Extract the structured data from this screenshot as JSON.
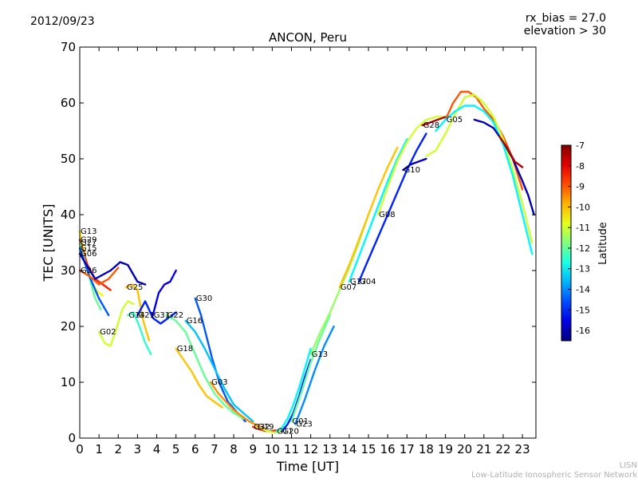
{
  "date_label": "2012/09/23",
  "bias_label": "rx_bias = 27.0",
  "elev_label": "elevation > 30",
  "footer": {
    "line1": "LISN",
    "line2": "Low-Latitude Ionospheric Sensor Network"
  },
  "colorbar": {
    "label": "Latitude",
    "ticks": [
      "-7",
      "-8",
      "-9",
      "-10",
      "-11",
      "-12",
      "-13",
      "-14",
      "-15",
      "-16"
    ],
    "tick_values": [
      -7,
      -8,
      -9,
      -10,
      -11,
      -12,
      -13,
      -14,
      -15,
      -16
    ],
    "range": [
      -16.5,
      -7
    ]
  },
  "chart_data": {
    "type": "line",
    "title": "ANCON, Peru",
    "xlabel": "Time [UT]",
    "ylabel": "TEC [UNITS]",
    "xlim": [
      0,
      23.7
    ],
    "ylim": [
      0,
      70
    ],
    "xticks": [
      0,
      1,
      2,
      3,
      4,
      5,
      6,
      7,
      8,
      9,
      10,
      11,
      12,
      13,
      14,
      15,
      16,
      17,
      18,
      19,
      20,
      21,
      22,
      23
    ],
    "yticks": [
      0,
      10,
      20,
      30,
      40,
      50,
      60,
      70
    ],
    "grid": false,
    "color_encoding": "latitude",
    "series": [
      {
        "name": "G13",
        "lat": -10.5,
        "x": [
          0.0,
          0.3,
          0.6,
          0.9,
          1.2
        ],
        "y": [
          37.0,
          32.0,
          28.0,
          26.3,
          25.5
        ]
      },
      {
        "name": "G29",
        "lat": -8.5,
        "x": [
          0.0,
          0.4,
          0.8,
          1.2,
          1.6
        ],
        "y": [
          35.5,
          31.0,
          28.5,
          27.5,
          26.5
        ]
      },
      {
        "name": "G27",
        "lat": -12.0,
        "x": [
          0.0,
          0.4,
          0.8,
          1.1
        ],
        "y": [
          35.0,
          30.0,
          25.0,
          23.0
        ]
      },
      {
        "name": "G15",
        "lat": -14.5,
        "x": [
          0.0,
          0.5,
          1.0,
          1.5
        ],
        "y": [
          34.0,
          29.0,
          25.0,
          22.0
        ]
      },
      {
        "name": "G26",
        "lat": -9.0,
        "x": [
          0.0,
          0.5,
          1.0,
          1.5,
          2.0
        ],
        "y": [
          30.0,
          29.0,
          27.5,
          28.5,
          30.5
        ]
      },
      {
        "name": "G02",
        "lat": -11.0,
        "x": [
          1.0,
          1.3,
          1.6,
          1.9,
          2.2,
          2.5,
          2.8
        ],
        "y": [
          19.0,
          17.0,
          16.5,
          19.5,
          23.0,
          24.5,
          24.0
        ]
      },
      {
        "name": "G25",
        "lat": -10.0,
        "x": [
          2.4,
          2.7,
          3.0,
          3.3,
          3.6
        ],
        "y": [
          27.0,
          27.5,
          26.5,
          21.0,
          17.5
        ]
      },
      {
        "name": "G14",
        "lat": -12.5,
        "x": [
          2.5,
          2.8,
          3.1,
          3.4,
          3.7
        ],
        "y": [
          22.0,
          22.5,
          20.0,
          17.0,
          15.0
        ]
      },
      {
        "name": "G21",
        "lat": -15.0,
        "x": [
          3.0,
          3.4,
          3.8,
          4.2,
          4.6,
          5.0
        ],
        "y": [
          22.0,
          24.5,
          21.5,
          20.5,
          21.5,
          22.5
        ]
      },
      {
        "name": "G31",
        "lat": -15.5,
        "x": [
          3.8,
          4.1,
          4.4,
          4.7,
          5.0
        ],
        "y": [
          22.0,
          26.0,
          27.5,
          28.0,
          30.0
        ]
      },
      {
        "name": "G06",
        "lat": -16.0,
        "x": [
          0.0,
          0.8,
          1.6,
          2.1,
          2.5,
          3.0,
          3.4
        ],
        "y": [
          33.0,
          28.5,
          30.0,
          31.5,
          31.0,
          28.0,
          27.5
        ]
      },
      {
        "name": "G30",
        "lat": -14.5,
        "x": [
          6.0,
          6.3,
          6.6,
          6.9,
          7.3,
          7.7,
          8.2,
          8.6
        ],
        "y": [
          25.0,
          22.0,
          18.0,
          14.0,
          9.5,
          6.5,
          4.5,
          3.0
        ]
      },
      {
        "name": "G18",
        "lat": -10.0,
        "x": [
          5.0,
          5.4,
          5.8,
          6.2,
          6.6,
          7.0,
          7.4
        ],
        "y": [
          16.0,
          14.0,
          12.0,
          9.5,
          7.5,
          6.5,
          5.5
        ]
      },
      {
        "name": "G22",
        "lat": -12.0,
        "x": [
          4.5,
          5.0,
          5.5,
          6.0,
          6.5,
          7.0,
          7.5,
          8.0,
          8.5
        ],
        "y": [
          22.0,
          21.0,
          19.0,
          15.0,
          11.0,
          8.0,
          6.0,
          4.5,
          3.5
        ]
      },
      {
        "name": "G16",
        "lat": -13.5,
        "x": [
          5.5,
          6.0,
          6.5,
          7.0,
          7.5,
          8.0,
          8.5,
          9.0
        ],
        "y": [
          21.0,
          19.0,
          16.0,
          12.5,
          9.0,
          6.0,
          4.5,
          3.0
        ]
      },
      {
        "name": "G03",
        "lat": -9.5,
        "x": [
          6.8,
          7.2,
          7.6,
          8.0,
          8.4,
          8.8,
          9.2,
          9.6
        ],
        "y": [
          10.0,
          8.0,
          6.5,
          5.0,
          4.0,
          3.0,
          2.3,
          1.8
        ]
      },
      {
        "name": "G32",
        "lat": -8.5,
        "x": [
          9.0,
          9.3,
          9.6,
          9.9,
          10.2
        ],
        "y": [
          2.0,
          1.6,
          1.3,
          1.2,
          1.4
        ]
      },
      {
        "name": "G19",
        "lat": -11.0,
        "x": [
          9.2,
          9.5,
          9.8,
          10.1,
          10.4,
          10.7
        ],
        "y": [
          2.0,
          1.6,
          1.2,
          1.0,
          1.2,
          2.0
        ]
      },
      {
        "name": "G11",
        "lat": -13.0,
        "x": [
          10.2,
          10.5,
          10.8,
          11.1,
          11.4,
          11.7,
          12.0
        ],
        "y": [
          1.2,
          1.8,
          3.5,
          6.0,
          9.0,
          12.5,
          16.0
        ]
      },
      {
        "name": "G20",
        "lat": -15.0,
        "x": [
          10.5,
          10.8,
          11.1,
          11.4,
          11.7,
          12.0
        ],
        "y": [
          1.2,
          2.5,
          4.5,
          7.5,
          11.0,
          14.0
        ]
      },
      {
        "name": "G01",
        "lat": -12.0,
        "x": [
          11.0,
          11.5,
          12.0,
          12.5,
          13.0
        ],
        "y": [
          3.0,
          8.0,
          13.5,
          18.0,
          22.0
        ]
      },
      {
        "name": "G23",
        "lat": -14.0,
        "x": [
          11.2,
          11.7,
          12.2,
          12.7,
          13.2
        ],
        "y": [
          2.5,
          7.0,
          12.0,
          16.5,
          20.0
        ]
      },
      {
        "name": "G13",
        "lat": -11.5,
        "x": [
          12.0,
          12.5,
          13.0,
          13.5,
          14.0,
          14.5,
          15.0
        ],
        "y": [
          15.0,
          19.0,
          22.5,
          26.5,
          30.5,
          35.0,
          40.0
        ]
      },
      {
        "name": "G07",
        "lat": -10.0,
        "x": [
          13.5,
          14.0,
          14.5,
          15.0,
          15.5,
          16.0,
          16.5
        ],
        "y": [
          27.0,
          31.0,
          35.5,
          40.0,
          44.5,
          48.5,
          52.0
        ]
      },
      {
        "name": "G17",
        "lat": -13.0,
        "x": [
          14.0,
          14.5,
          15.0,
          15.5,
          16.0,
          16.5,
          17.0
        ],
        "y": [
          28.0,
          32.5,
          37.0,
          41.5,
          46.0,
          50.0,
          53.5
        ]
      },
      {
        "name": "G04",
        "lat": -15.0,
        "x": [
          14.5,
          15.0,
          15.5,
          16.0,
          16.5,
          17.0,
          17.5,
          18.0
        ],
        "y": [
          28.0,
          32.0,
          36.0,
          40.0,
          44.0,
          48.0,
          51.5,
          54.5
        ]
      },
      {
        "name": "G08",
        "lat": -11.0,
        "x": [
          15.5,
          16.0,
          16.5,
          17.0,
          17.5,
          18.0,
          18.5,
          19.0
        ],
        "y": [
          40.0,
          45.0,
          49.5,
          53.0,
          55.5,
          57.0,
          57.5,
          57.5
        ]
      },
      {
        "name": "G10",
        "lat": -16.0,
        "x": [
          16.8,
          17.2,
          17.6,
          18.0
        ],
        "y": [
          48.0,
          49.0,
          49.5,
          50.0
        ]
      },
      {
        "name": "G28",
        "lat": -7.5,
        "x": [
          17.8,
          18.2,
          18.6,
          19.0
        ],
        "y": [
          56.0,
          56.5,
          57.0,
          57.5
        ]
      },
      {
        "name": "G05",
        "lat": -9.0,
        "x": [
          19.0,
          19.4,
          19.8,
          20.2,
          20.6,
          21.0,
          21.5,
          22.0,
          22.5,
          23.0
        ],
        "y": [
          57.0,
          60.0,
          62.0,
          62.0,
          61.0,
          59.0,
          57.0,
          54.0,
          50.0,
          44.5
        ]
      },
      {
        "name": "",
        "lat": -11.0,
        "x": [
          18.0,
          18.5,
          19.0,
          19.5,
          20.0,
          20.5,
          21.0,
          21.5,
          22.0,
          22.5,
          23.0,
          23.5
        ],
        "y": [
          50.5,
          51.5,
          54.5,
          58.0,
          61.0,
          61.5,
          60.0,
          57.5,
          53.5,
          48.0,
          42.0,
          35.0
        ]
      },
      {
        "name": "",
        "lat": -13.0,
        "x": [
          18.5,
          19.0,
          19.5,
          20.0,
          20.5,
          21.0,
          21.5,
          22.0,
          22.5,
          23.0,
          23.5
        ],
        "y": [
          55.0,
          57.0,
          58.5,
          59.5,
          59.5,
          58.5,
          56.5,
          52.5,
          47.0,
          40.0,
          33.0
        ]
      },
      {
        "name": "",
        "lat": -16.0,
        "x": [
          20.5,
          21.0,
          21.5,
          22.0,
          22.5,
          23.0,
          23.3,
          23.6
        ],
        "y": [
          57.0,
          56.5,
          55.5,
          53.0,
          50.0,
          46.0,
          43.5,
          40.0
        ]
      },
      {
        "name": "",
        "lat": -7.5,
        "x": [
          21.8,
          22.2,
          22.6,
          23.0
        ],
        "y": [
          54.0,
          52.0,
          49.5,
          48.5
        ]
      }
    ]
  }
}
